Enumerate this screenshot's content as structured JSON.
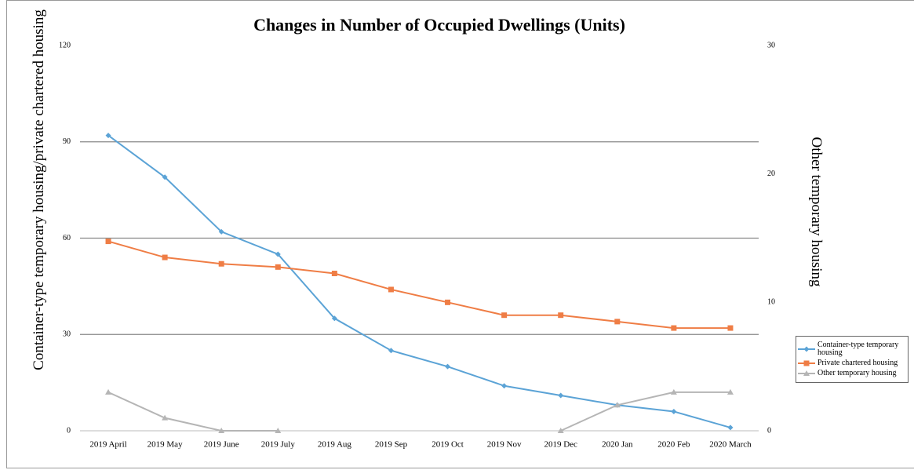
{
  "chart_data": {
    "type": "line",
    "title": "Changes in Number of Occupied Dwellings (Units)",
    "y_label": "Container-type temporary housing/private chartered housing",
    "y2_label": "Other temporary housing",
    "categories": [
      "2019 April",
      "2019 May",
      "2019 June",
      "2019 July",
      "2019 Aug",
      "2019 Sep",
      "2019 Oct",
      "2019 Nov",
      "2019 Dec",
      "2020 Jan",
      "2020 Feb",
      "2020 March"
    ],
    "series": [
      {
        "name": "Container-type temporary housing",
        "color": "#5ba3d6",
        "marker": "diamond",
        "values": [
          92,
          79,
          62,
          55,
          35,
          25,
          20,
          14,
          11,
          8,
          6,
          1
        ]
      },
      {
        "name": "Private chartered housing",
        "color": "#ef7d45",
        "marker": "square",
        "values": [
          59,
          54,
          52,
          51,
          49,
          44,
          40,
          36,
          36,
          34,
          32,
          32
        ]
      },
      {
        "name": "Other temporary housing",
        "color": "#b5b5b5",
        "marker": "triangle",
        "axis": "y2",
        "values": [
          3,
          1,
          0,
          0,
          null,
          null,
          null,
          null,
          0,
          2,
          3,
          3
        ]
      }
    ],
    "ylim": [
      0,
      120
    ],
    "yticks": [
      0,
      30,
      60,
      90,
      120
    ],
    "y2lim": [
      0,
      30
    ],
    "y2ticks": [
      0,
      10,
      20,
      30
    ],
    "grid": true,
    "legend": "right"
  }
}
